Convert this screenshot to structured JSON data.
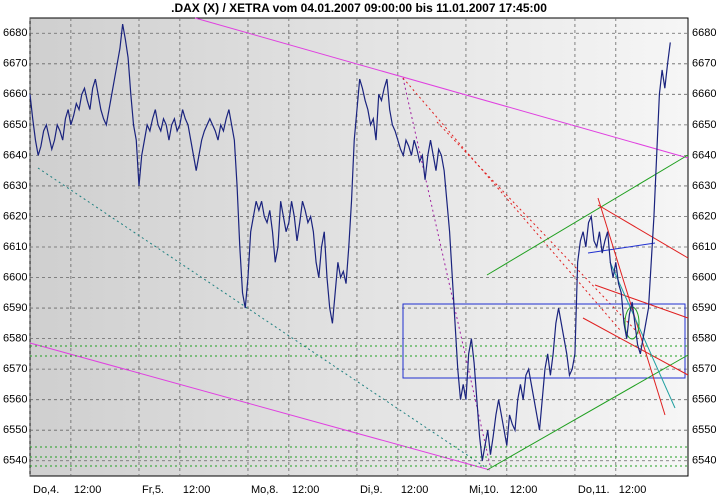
{
  "chart_data": {
    "type": "line",
    "title": ".DAX (X) / XETRA vom 04.01.2007 09:00:00 bis 11.01.2007 17:45:00",
    "color": "#1a237e",
    "values": [
      6660,
      6652,
      6645,
      6640,
      6643,
      6648,
      6650,
      6646,
      6642,
      6645,
      6650,
      6648,
      6645,
      6652,
      6655,
      6650,
      6653,
      6657,
      6655,
      6660,
      6662,
      6658,
      6655,
      6662,
      6665,
      6660,
      6655,
      6652,
      6650,
      6655,
      6660,
      6665,
      6670,
      6675,
      6683,
      6678,
      6672,
      6660,
      6650,
      6645,
      6630,
      6640,
      6645,
      6650,
      6648,
      6652,
      6655,
      6650,
      6648,
      6652,
      6650,
      6645,
      6650,
      6652,
      6648,
      6650,
      6655,
      6652,
      6650,
      6645,
      6640,
      6635,
      6640,
      6645,
      6648,
      6650,
      6652,
      6650,
      6648,
      6645,
      6650,
      6648,
      6652,
      6655,
      6650,
      6645,
      6630,
      6610,
      6595,
      6590,
      6600,
      6615,
      6620,
      6625,
      6622,
      6625,
      6620,
      6618,
      6622,
      6615,
      6605,
      6610,
      6625,
      6620,
      6615,
      6618,
      6625,
      6620,
      6612,
      6618,
      6625,
      6622,
      6618,
      6620,
      6615,
      6605,
      6600,
      6610,
      6615,
      6600,
      6590,
      6585,
      6595,
      6605,
      6600,
      6602,
      6598,
      6610,
      6625,
      6645,
      6655,
      6665,
      6662,
      6658,
      6655,
      6650,
      6652,
      6645,
      6660,
      6658,
      6662,
      6665,
      6655,
      6650,
      6648,
      6645,
      6642,
      6640,
      6645,
      6643,
      6640,
      6645,
      6642,
      6638,
      6640,
      6632,
      6640,
      6645,
      6640,
      6635,
      6642,
      6640,
      6635,
      6625,
      6615,
      6600,
      6585,
      6570,
      6560,
      6565,
      6560,
      6575,
      6580,
      6572,
      6560,
      6548,
      6540,
      6545,
      6550,
      6542,
      6548,
      6555,
      6560,
      6555,
      6550,
      6545,
      6555,
      6552,
      6550,
      6560,
      6565,
      6560,
      6568,
      6570,
      6565,
      6560,
      6555,
      6550,
      6560,
      6570,
      6575,
      6568,
      6575,
      6585,
      6590,
      6585,
      6580,
      6575,
      6568,
      6570,
      6575,
      6605,
      6612,
      6615,
      6610,
      6618,
      6620,
      6612,
      6610,
      6615,
      6608,
      6612,
      6615,
      6605,
      6600,
      6605,
      6598,
      6595,
      6585,
      6580,
      6588,
      6592,
      6585,
      6578,
      6575,
      6580,
      6585,
      6590,
      6605,
      6620,
      6640,
      6660,
      6668,
      6662,
      6670,
      6677
    ],
    "xlim": [
      0,
      241.5
    ],
    "xticks": [
      {
        "value": 0,
        "label": "Do,4."
      },
      {
        "value": 15,
        "label": "12:00"
      },
      {
        "value": 40,
        "label": "Fr,5."
      },
      {
        "value": 55,
        "label": "12:00"
      },
      {
        "value": 80,
        "label": "Mo,8."
      },
      {
        "value": 95,
        "label": "12:00"
      },
      {
        "value": 120,
        "label": "Di,9."
      },
      {
        "value": 135,
        "label": "12:00"
      },
      {
        "value": 160,
        "label": "Mi,10."
      },
      {
        "value": 175,
        "label": "12:00"
      },
      {
        "value": 200,
        "label": "Do,11."
      },
      {
        "value": 215,
        "label": "12:00"
      }
    ],
    "ylim": [
      6535,
      6685
    ],
    "yticks": [
      6540,
      6550,
      6560,
      6570,
      6580,
      6590,
      6600,
      6610,
      6620,
      6630,
      6640,
      6650,
      6660,
      6670,
      6680
    ],
    "grid": true
  }
}
